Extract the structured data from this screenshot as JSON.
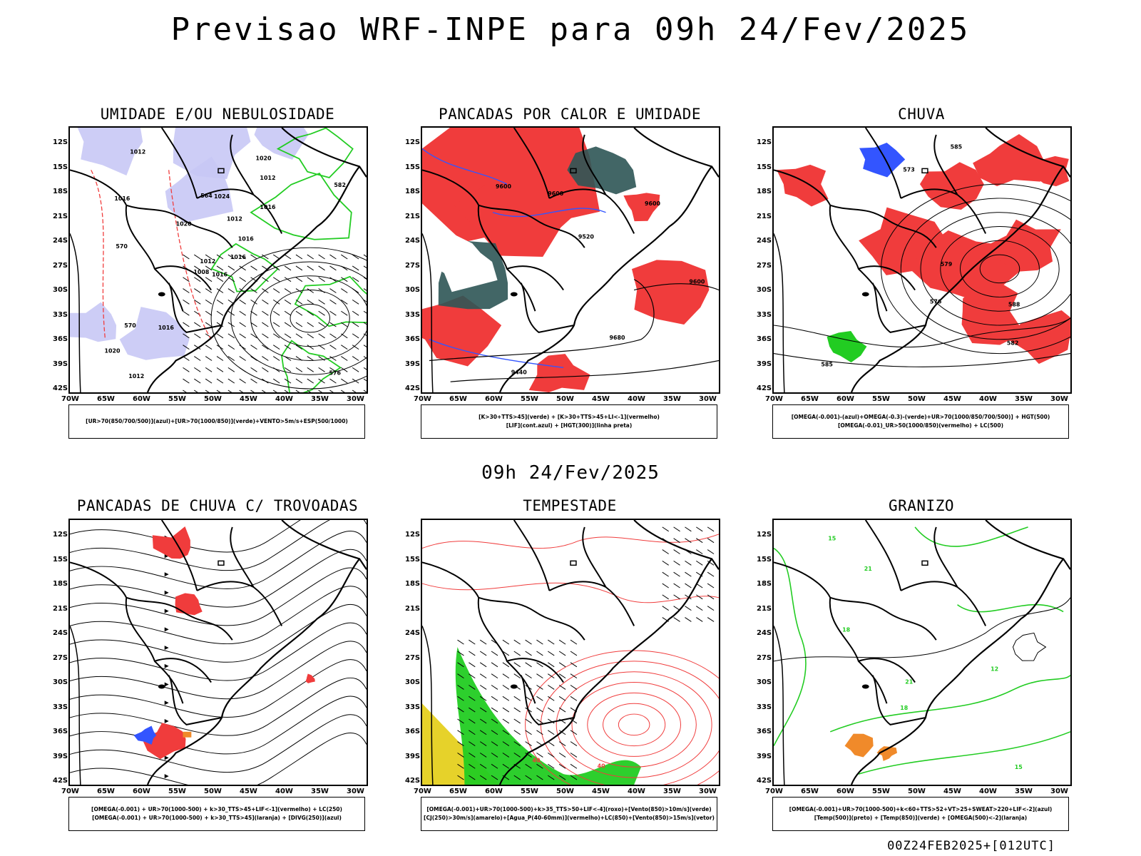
{
  "title": "Previsao WRF-INPE  para 09h 24/Fev/2025",
  "mid_time": "09h 24/Fev/2025",
  "footer": "00Z24FEB2025+[012UTC]",
  "lat_ticks": [
    "12S",
    "15S",
    "18S",
    "21S",
    "24S",
    "27S",
    "30S",
    "33S",
    "36S",
    "39S",
    "42S"
  ],
  "lon_ticks": [
    "70W",
    "65W",
    "60W",
    "55W",
    "50W",
    "45W",
    "40W",
    "35W",
    "30W"
  ],
  "colors": {
    "red": "#f03c3c",
    "green": "#22cc22",
    "blue": "#3355ff",
    "lavender": "#c8c8f5",
    "teal": "#2e5555",
    "yellow": "#e6d22a",
    "orange": "#f08a2a",
    "black": "#000000"
  },
  "panels": [
    {
      "title": "UMIDADE E/OU NEBULOSIDADE",
      "legend": [
        "[UR>70(850/700/500)](azul)+[UR>70(1000/850)](verde)+VENTO>5m/s+ESP(500/1000)"
      ],
      "labels": [
        "1016",
        "1016",
        "1012",
        "1020",
        "1016",
        "1016",
        "1020",
        "1024",
        "1012",
        "1016",
        "1012",
        "576",
        "570",
        "582",
        "1008",
        "1016",
        "1012",
        "564",
        "1012",
        "570",
        "1020"
      ]
    },
    {
      "title": "PANCADAS POR CALOR E UMIDADE",
      "legend": [
        "[K>30+TTS>45](verde) + [K>30+TTS>45+LI<-1](vermelho)",
        "[LIF](cont.azul) + [HGT(300)](linha preta)"
      ],
      "labels": [
        "9600",
        "9680",
        "9600",
        "9600",
        "9600",
        "9440",
        "9520"
      ]
    },
    {
      "title": "CHUVA",
      "legend": [
        "[OMEGA(-0.001)-(azul)+OMEGA(-0.3)-(verde)+UR>70(1000/850/700/500)] + HGT(500)",
        "[OMEGA(-0.01)_UR>50(1000/850)(vermelho) + LC(500)"
      ],
      "labels": [
        "585",
        "588",
        "579",
        "576",
        "573",
        "585",
        "582"
      ]
    },
    {
      "title": "PANCADAS DE CHUVA C/ TROVOADAS",
      "legend": [
        "[OMEGA(-0.001) + UR>70(1000-500) + k>30_TTS>45+LIF<-1](vermelho) + LC(250)",
        "[OMEGA(-0.001) + UR>70(1000-500) + k>30_TTS>45](laranja) + [DIVG(250)](azul)"
      ],
      "labels": []
    },
    {
      "title": "TEMPESTADE",
      "legend": [
        "[OMEGA(-0.001)+UR>70(1000-500)+k>35_TTS>50+LIF<-4](roxo)+[Vento(850)>10m/s](verde)",
        "[CJ(250)>30m/s](amarelo)+[Agua_P(40-60mm)](vermelho)+LC(850)+[Vento(850)>15m/s](vetor)"
      ],
      "labels": [
        "40",
        "40"
      ]
    },
    {
      "title": "GRANIZO",
      "legend": [
        "[OMEGA(-0.001)+UR>70(1000-500)+k<60+TTS>52+VT>25+SWEAT>220+LIF<-2](azul)",
        "[Temp(500)](preto) + [Temp(850)](verde) + [OMEGA(500)<-2](laranja)"
      ],
      "labels": [
        "21",
        "18",
        "15",
        "12",
        "15",
        "21",
        "18"
      ]
    }
  ]
}
